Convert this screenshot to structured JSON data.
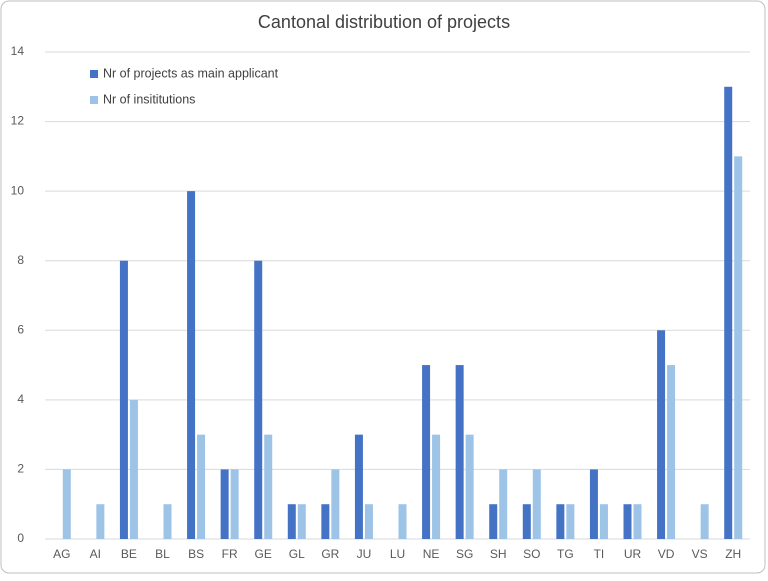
{
  "chart_data": {
    "type": "bar",
    "title": "Cantonal distribution of projects",
    "categories": [
      "AG",
      "AI",
      "BE",
      "BL",
      "BS",
      "FR",
      "GE",
      "GL",
      "GR",
      "JU",
      "LU",
      "NE",
      "SG",
      "SH",
      "SO",
      "TG",
      "TI",
      "UR",
      "VD",
      "VS",
      "ZH"
    ],
    "series": [
      {
        "name": "Nr of projects as main applicant",
        "color": "#4472c4",
        "values": [
          0,
          0,
          8,
          0,
          10,
          2,
          8,
          1,
          1,
          3,
          0,
          5,
          5,
          1,
          1,
          1,
          2,
          1,
          6,
          0,
          13
        ]
      },
      {
        "name": "Nr of insititutions",
        "color": "#9dc3e6",
        "values": [
          2,
          1,
          4,
          1,
          3,
          2,
          3,
          1,
          2,
          1,
          1,
          3,
          3,
          2,
          2,
          1,
          1,
          1,
          5,
          1,
          11
        ]
      }
    ],
    "ylim": [
      0,
      14
    ],
    "yticks": [
      0,
      2,
      4,
      6,
      8,
      10,
      12,
      14
    ],
    "grid": true,
    "legend": "upper left"
  }
}
